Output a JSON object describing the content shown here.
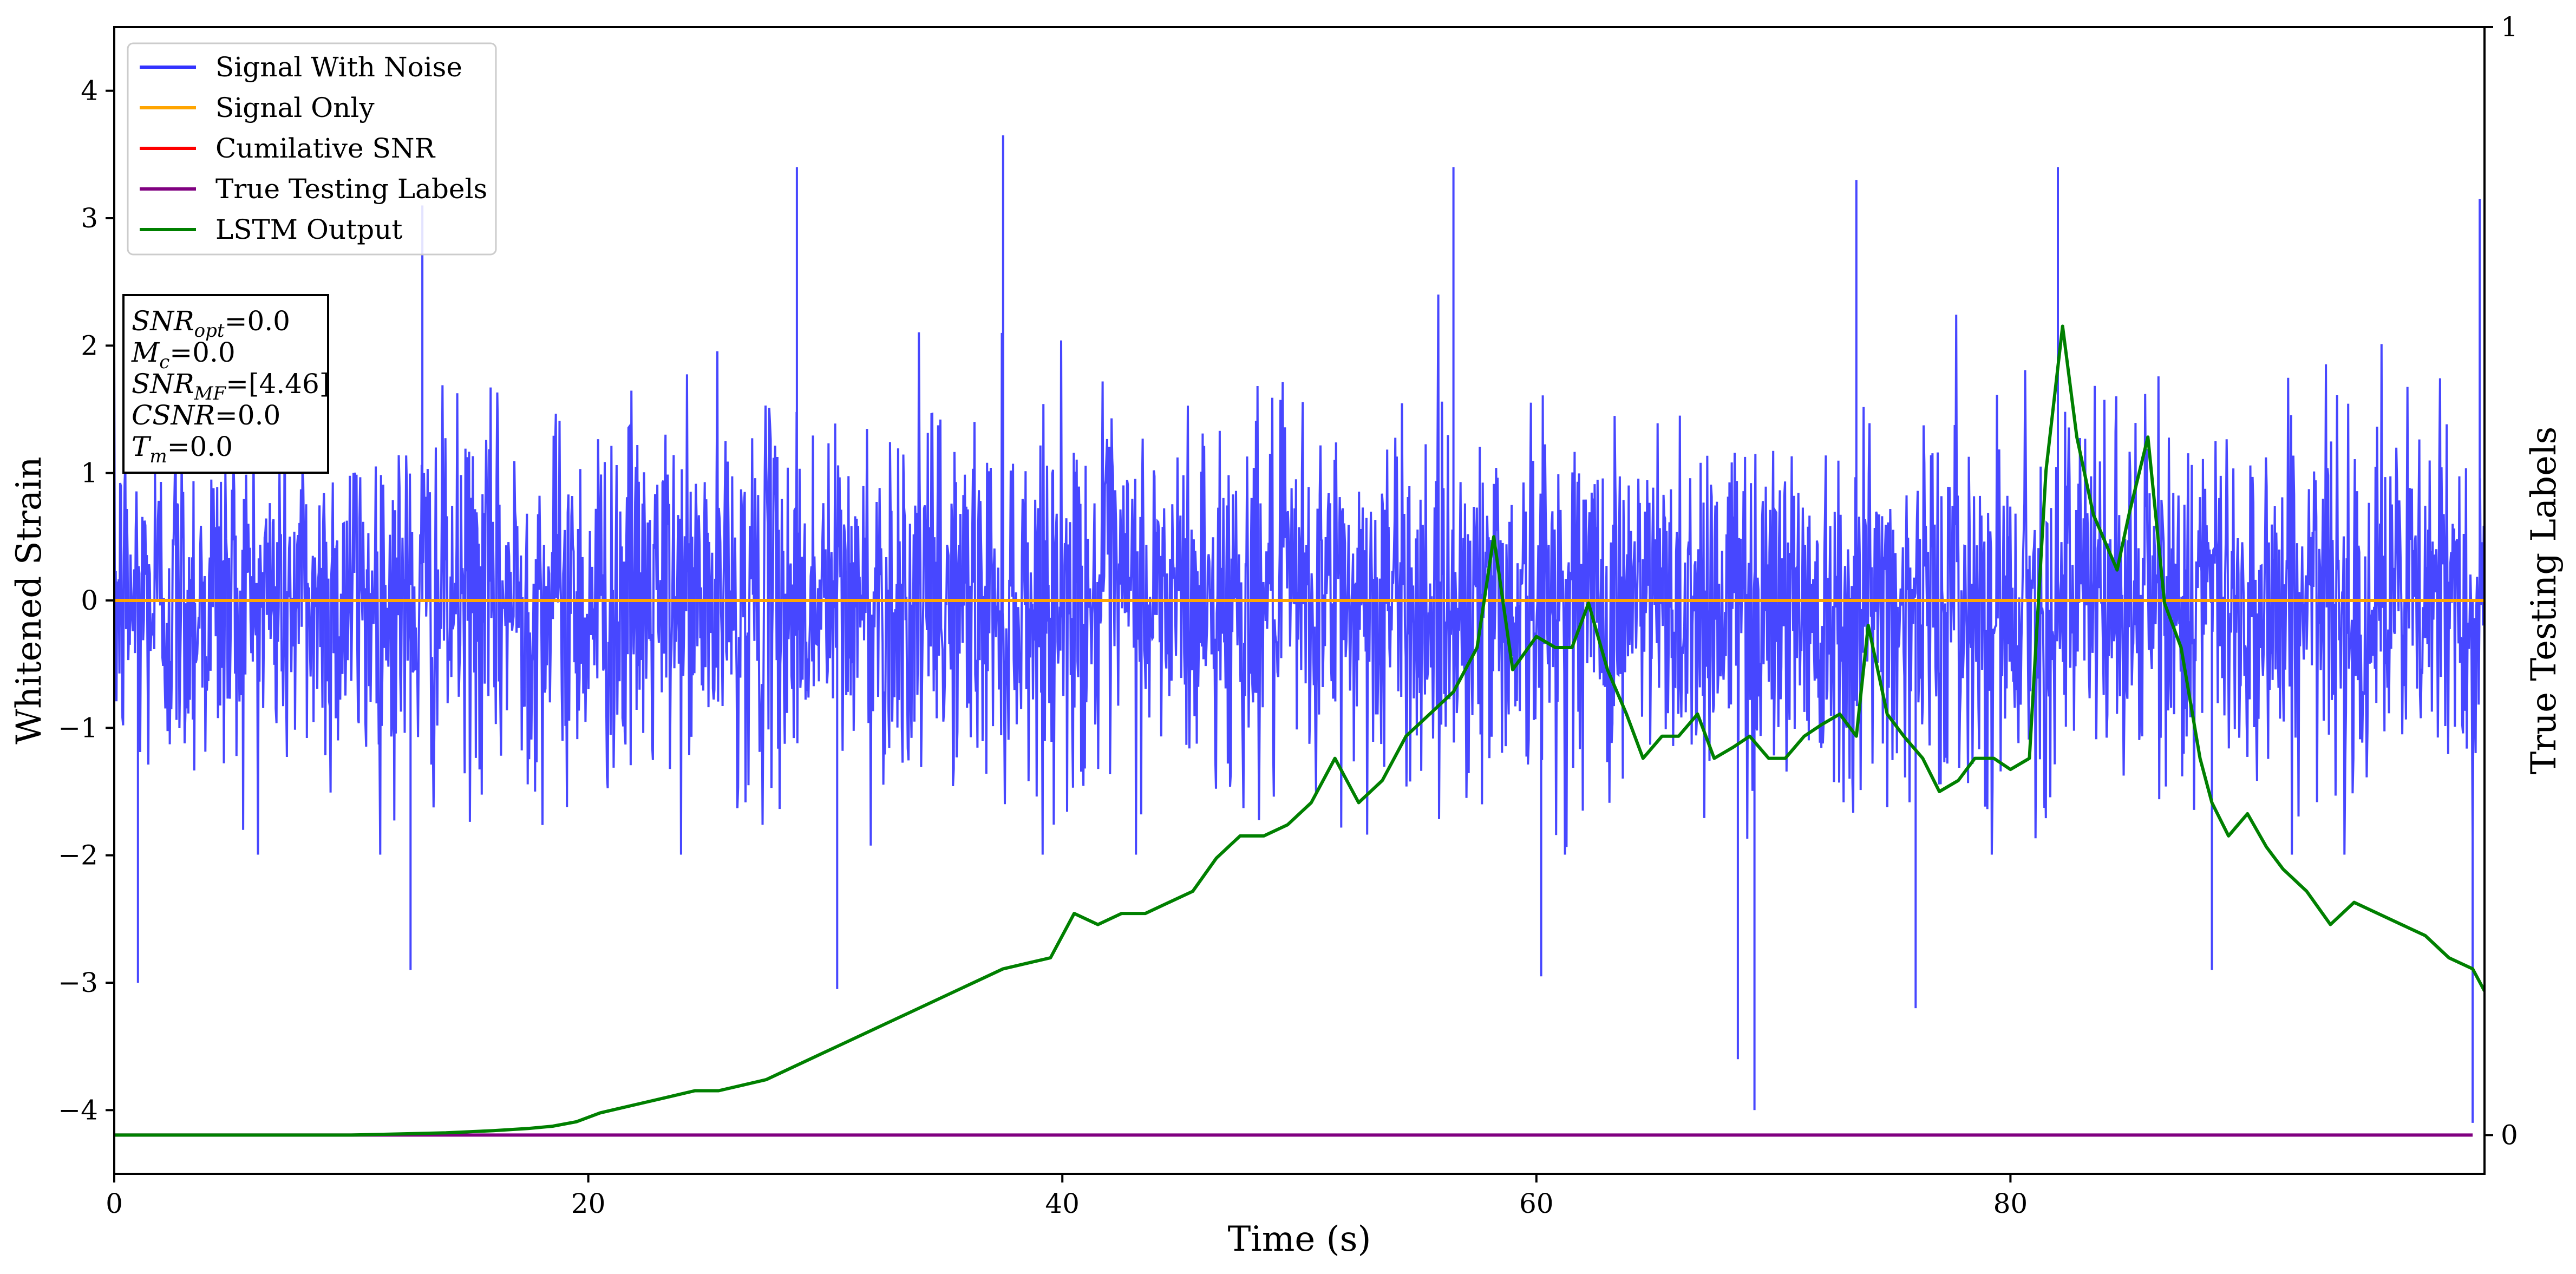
{
  "chart_data": {
    "type": "line",
    "xlabel": "Time (s)",
    "ylabel": "Whitened Strain",
    "y2label": "True Testing Labels",
    "xlim": [
      0,
      100
    ],
    "ylim": [
      -4.5,
      4.5
    ],
    "y2lim": [
      -0.035,
      1
    ],
    "xticks": [
      "0",
      "20",
      "40",
      "60",
      "80"
    ],
    "yticks": [
      "4",
      "3",
      "2",
      "1",
      "0",
      "−1",
      "−2",
      "−3",
      "−4"
    ],
    "y2ticks": [
      "1",
      "0"
    ],
    "grid": false,
    "legend_position": "top-left",
    "legend": [
      "Signal With Noise",
      "Signal Only",
      "Cumilative SNR",
      "True Testing Labels",
      "LSTM Output"
    ],
    "colors": {
      "signal_with_noise": "#3333ff",
      "signal_only": "#ffa500",
      "cumulative_snr": "#ff0000",
      "true_labels": "#800080",
      "lstm_output": "#008000"
    },
    "series": [
      {
        "name": "Signal With Noise",
        "description": "dense whitened noise strain",
        "envelope_upper": 2.3,
        "envelope_lower": -1.9,
        "spikes": [
          {
            "x": 1.0,
            "y": -3.0
          },
          {
            "x": 12.5,
            "y": -2.9
          },
          {
            "x": 13.0,
            "y": 3.1
          },
          {
            "x": 28.8,
            "y": 3.4
          },
          {
            "x": 30.5,
            "y": -3.05
          },
          {
            "x": 37.5,
            "y": 3.65
          },
          {
            "x": 56.5,
            "y": 3.4
          },
          {
            "x": 60.2,
            "y": -2.95
          },
          {
            "x": 68.5,
            "y": -3.6
          },
          {
            "x": 69.2,
            "y": -4.0
          },
          {
            "x": 73.5,
            "y": 3.3
          },
          {
            "x": 76.0,
            "y": -3.2
          },
          {
            "x": 82.0,
            "y": 3.4
          },
          {
            "x": 88.5,
            "y": -2.9
          },
          {
            "x": 99.5,
            "y": -4.1
          },
          {
            "x": 99.8,
            "y": 3.15
          }
        ]
      },
      {
        "name": "Signal Only",
        "x": [
          0,
          100
        ],
        "y": [
          0,
          0
        ]
      },
      {
        "name": "True Testing Labels",
        "axis": "right",
        "x": [
          0,
          99.5
        ],
        "y": [
          0,
          0
        ]
      },
      {
        "name": "LSTM Output",
        "axis": "right",
        "x": [
          0,
          10,
          14,
          16,
          17.5,
          18.5,
          19.5,
          20.5,
          21.5,
          22.5,
          23.5,
          24.5,
          25.5,
          26.5,
          27.5,
          28.5,
          29.5,
          30.5,
          31.5,
          32.5,
          33.5,
          34.5,
          35.5,
          36.5,
          37.5,
          38.5,
          39.5,
          40.5,
          41.5,
          42.5,
          43.5,
          44.5,
          45.5,
          46.5,
          47.5,
          48.5,
          49.5,
          50.5,
          51.5,
          52.5,
          53.5,
          54.5,
          55.5,
          56.5,
          57.5,
          58.2,
          59.0,
          60.0,
          60.8,
          61.5,
          62.2,
          63.0,
          63.8,
          64.5,
          65.3,
          66.0,
          66.8,
          67.5,
          68.3,
          69.0,
          69.8,
          70.5,
          71.3,
          72.0,
          72.8,
          73.5,
          74.0,
          74.8,
          75.5,
          76.3,
          77.0,
          77.8,
          78.5,
          79.3,
          80.0,
          80.8,
          81.5,
          82.2,
          82.8,
          83.5,
          84.5,
          85.0,
          85.8,
          86.5,
          87.2,
          88.0,
          88.5,
          89.2,
          90.0,
          90.8,
          91.5,
          92.5,
          93.5,
          94.5,
          95.5,
          96.5,
          97.5,
          98.5,
          99.5,
          100.0
        ],
        "y": [
          0.0,
          0.0,
          0.002,
          0.004,
          0.006,
          0.008,
          0.012,
          0.02,
          0.025,
          0.03,
          0.035,
          0.04,
          0.04,
          0.045,
          0.05,
          0.06,
          0.07,
          0.08,
          0.09,
          0.1,
          0.11,
          0.12,
          0.13,
          0.14,
          0.15,
          0.155,
          0.16,
          0.2,
          0.19,
          0.2,
          0.2,
          0.21,
          0.22,
          0.25,
          0.27,
          0.27,
          0.28,
          0.3,
          0.34,
          0.3,
          0.32,
          0.36,
          0.38,
          0.4,
          0.44,
          0.54,
          0.42,
          0.45,
          0.44,
          0.44,
          0.48,
          0.42,
          0.38,
          0.34,
          0.36,
          0.36,
          0.38,
          0.34,
          0.35,
          0.36,
          0.34,
          0.34,
          0.36,
          0.37,
          0.38,
          0.36,
          0.46,
          0.38,
          0.36,
          0.34,
          0.31,
          0.32,
          0.34,
          0.34,
          0.33,
          0.34,
          0.6,
          0.73,
          0.63,
          0.56,
          0.51,
          0.56,
          0.63,
          0.48,
          0.44,
          0.34,
          0.3,
          0.27,
          0.29,
          0.26,
          0.24,
          0.22,
          0.19,
          0.21,
          0.2,
          0.19,
          0.18,
          0.16,
          0.15,
          0.13
        ]
      }
    ],
    "annotation_box": {
      "lines": [
        {
          "var": "SNR",
          "sub": "opt",
          "value": "=0.0"
        },
        {
          "var": "M",
          "sub": "c",
          "value": "=0.0"
        },
        {
          "var": "SNR",
          "sub": "MF",
          "value": "=[4.46]"
        },
        {
          "var": "CSNR",
          "sub": "",
          "value": "=0.0"
        },
        {
          "var": "T",
          "sub": "m",
          "value": "=0.0"
        }
      ]
    }
  }
}
